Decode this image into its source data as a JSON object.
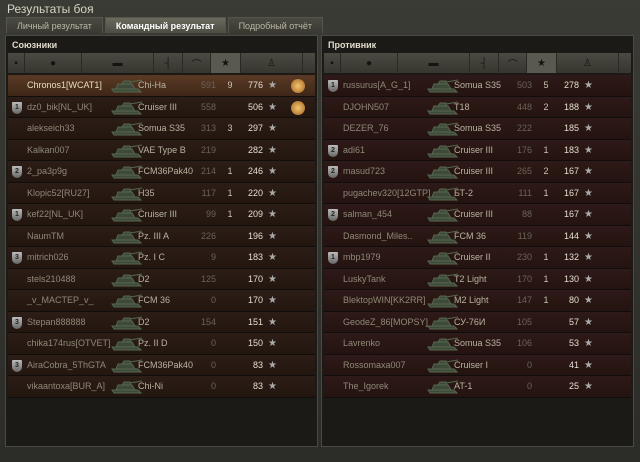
{
  "window": {
    "title": "Результаты боя"
  },
  "tabs": [
    {
      "label": "Личный результат",
      "active": false
    },
    {
      "label": "Командный результат",
      "active": true
    },
    {
      "label": "Подробный отчёт",
      "active": false
    }
  ],
  "allies": {
    "title": "Союзники",
    "rows": [
      {
        "rank": "",
        "name": "Chronos1[WCAT1]",
        "tank": "Chi-Ha",
        "damage": "591",
        "kills": "9",
        "xp": "776",
        "medal": true,
        "me": true
      },
      {
        "rank": "1",
        "name": "dz0_bik[NL_UK]",
        "tank": "Cruiser III",
        "damage": "558",
        "kills": "",
        "xp": "506",
        "medal": true
      },
      {
        "rank": "",
        "name": "alekseich33",
        "tank": "Somua S35",
        "damage": "313",
        "kills": "3",
        "xp": "297"
      },
      {
        "rank": "",
        "name": "Kalkan007",
        "tank": "VAE Type B",
        "damage": "219",
        "kills": "",
        "xp": "282"
      },
      {
        "rank": "2",
        "name": "2_pa3p9g",
        "tank": "FCM36Pak40",
        "damage": "214",
        "kills": "1",
        "xp": "246"
      },
      {
        "rank": "",
        "name": "Klopic52[RU27]",
        "tank": "H35",
        "damage": "117",
        "kills": "1",
        "xp": "220"
      },
      {
        "rank": "1",
        "name": "kef22[NL_UK]",
        "tank": "Cruiser III",
        "damage": "99",
        "kills": "1",
        "xp": "209"
      },
      {
        "rank": "",
        "name": "NaumTM",
        "tank": "Pz. III A",
        "damage": "226",
        "kills": "",
        "xp": "196"
      },
      {
        "rank": "3",
        "name": "mitrich026",
        "tank": "Pz. I C",
        "damage": "9",
        "kills": "",
        "xp": "183"
      },
      {
        "rank": "",
        "name": "stels210488",
        "tank": "D2",
        "damage": "125",
        "kills": "",
        "xp": "170"
      },
      {
        "rank": "",
        "name": "_v_MACTEP_v_",
        "tank": "FCM 36",
        "damage": "0",
        "kills": "",
        "xp": "170"
      },
      {
        "rank": "3",
        "name": "Stepan888888",
        "tank": "D2",
        "damage": "154",
        "kills": "",
        "xp": "151"
      },
      {
        "rank": "",
        "name": "chika174rus[OTVET]",
        "tank": "Pz. II D",
        "damage": "0",
        "kills": "",
        "xp": "150"
      },
      {
        "rank": "3",
        "name": "AiraCobra_5ThGTA",
        "tank": "FCM36Pak40",
        "damage": "0",
        "kills": "",
        "xp": "83"
      },
      {
        "rank": "",
        "name": "vikaantoxa[BUR_A]",
        "tank": "Chi-Ni",
        "damage": "0",
        "kills": "",
        "xp": "83"
      }
    ]
  },
  "enemies": {
    "title": "Противник",
    "rows": [
      {
        "rank": "1",
        "name": "russurus[A_G_1]",
        "tank": "Somua S35",
        "damage": "503",
        "kills": "5",
        "xp": "278"
      },
      {
        "rank": "",
        "name": "DJOHN507",
        "tank": "T18",
        "damage": "448",
        "kills": "2",
        "xp": "188"
      },
      {
        "rank": "",
        "name": "DEZER_76",
        "tank": "Somua S35",
        "damage": "222",
        "kills": "",
        "xp": "185"
      },
      {
        "rank": "2",
        "name": "adi61",
        "tank": "Cruiser III",
        "damage": "176",
        "kills": "1",
        "xp": "183"
      },
      {
        "rank": "2",
        "name": "masud723",
        "tank": "Cruiser III",
        "damage": "265",
        "kills": "2",
        "xp": "167"
      },
      {
        "rank": "",
        "name": "pugachev320[12GTP]",
        "tank": "БТ-2",
        "damage": "111",
        "kills": "1",
        "xp": "167"
      },
      {
        "rank": "2",
        "name": "salman_454",
        "tank": "Cruiser III",
        "damage": "88",
        "kills": "",
        "xp": "167"
      },
      {
        "rank": "",
        "name": "Dasmond_Miles..",
        "tank": "FCM 36",
        "damage": "119",
        "kills": "",
        "xp": "144"
      },
      {
        "rank": "1",
        "name": "mbp1979",
        "tank": "Cruiser II",
        "damage": "230",
        "kills": "1",
        "xp": "132"
      },
      {
        "rank": "",
        "name": "LuskyTank",
        "tank": "T2 Light",
        "damage": "170",
        "kills": "1",
        "xp": "130"
      },
      {
        "rank": "",
        "name": "BlektopWIN[KK2RR]",
        "tank": "M2 Light",
        "damage": "147",
        "kills": "1",
        "xp": "80"
      },
      {
        "rank": "",
        "name": "GeodeZ_86[MOPSY]",
        "tank": "СУ-76И",
        "damage": "105",
        "kills": "",
        "xp": "57"
      },
      {
        "rank": "",
        "name": "Lavrenko",
        "tank": "Somua S35",
        "damage": "106",
        "kills": "",
        "xp": "53"
      },
      {
        "rank": "",
        "name": "Rossomaxa007",
        "tank": "Cruiser I",
        "damage": "0",
        "kills": "",
        "xp": "41"
      },
      {
        "rank": "",
        "name": "The_Igorek",
        "tank": "AT-1",
        "damage": "0",
        "kills": "",
        "xp": "25"
      }
    ]
  },
  "icons": {
    "star": "★",
    "columns": [
      "squad-icon",
      "player-icon",
      "tank-icon",
      "damage-icon",
      "kills-icon",
      "xp-star-icon",
      "medal-icon"
    ]
  }
}
